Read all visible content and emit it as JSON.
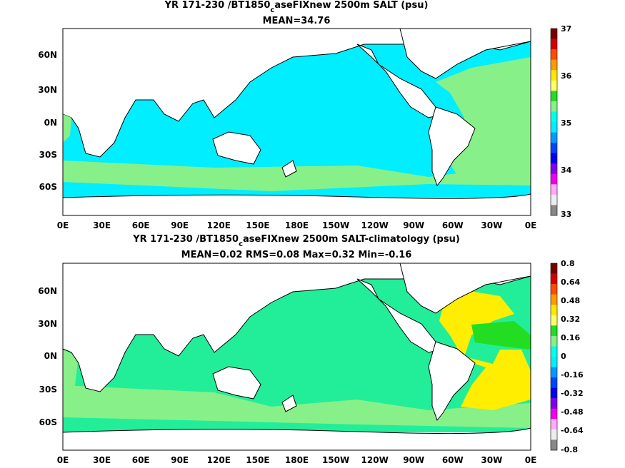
{
  "panels": [
    {
      "title_parts": [
        "YR 171-230 /BT1850",
        "c",
        "aseFIXnew 2500m SALT (psu)"
      ],
      "subtitle": "MEAN=34.76",
      "colorbar": {
        "labels": [
          "37",
          "36",
          "35",
          "34",
          "33"
        ],
        "colors": [
          "#7a0000",
          "#d40000",
          "#ff4a00",
          "#ff9a00",
          "#ffe800",
          "#ffff66",
          "#22dd22",
          "#88f088",
          "#00ffee",
          "#00eeff",
          "#0099ff",
          "#0044ff",
          "#0000ee",
          "#8000ee",
          "#ee00ee",
          "#ffaaff",
          "#eeeeee",
          "#888888"
        ]
      },
      "fill": {
        "dominant": "#00eeff",
        "secondary": "#88f088",
        "atlantic": "#88f088"
      }
    },
    {
      "title_parts": [
        "YR 171-230 /BT1850",
        "c",
        "aseFIXnew 2500m SALT-climatology (psu)"
      ],
      "subtitle": "MEAN=0.02   RMS=0.08   Max=0.32   Min=-0.16",
      "colorbar": {
        "labels": [
          "0.8",
          "0.64",
          "0.48",
          "0.32",
          "0.16",
          "0",
          "-0.16",
          "-0.32",
          "-0.48",
          "-0.64",
          "-0.8"
        ],
        "colors": [
          "#7a0000",
          "#d40000",
          "#ff4a00",
          "#ff9a00",
          "#ffe800",
          "#ffff66",
          "#22dd22",
          "#88f088",
          "#00ffee",
          "#00eeff",
          "#0099ff",
          "#0044ff",
          "#0000ee",
          "#8000ee",
          "#ee00ee",
          "#ffaaff",
          "#eeeeee",
          "#888888"
        ]
      },
      "fill": {
        "dominant": "#22ee99",
        "secondary": "#88f088",
        "atlantic": "#ffee00"
      }
    }
  ],
  "axes": {
    "x_ticks": [
      "0E",
      "30E",
      "60E",
      "90E",
      "120E",
      "150E",
      "180E",
      "150W",
      "120W",
      "90W",
      "60W",
      "30W",
      "0E"
    ],
    "y_ticks": [
      "60N",
      "30N",
      "0N",
      "30S",
      "60S"
    ],
    "lat_range": [
      -80,
      90
    ],
    "lon_range": [
      0,
      360
    ]
  }
}
